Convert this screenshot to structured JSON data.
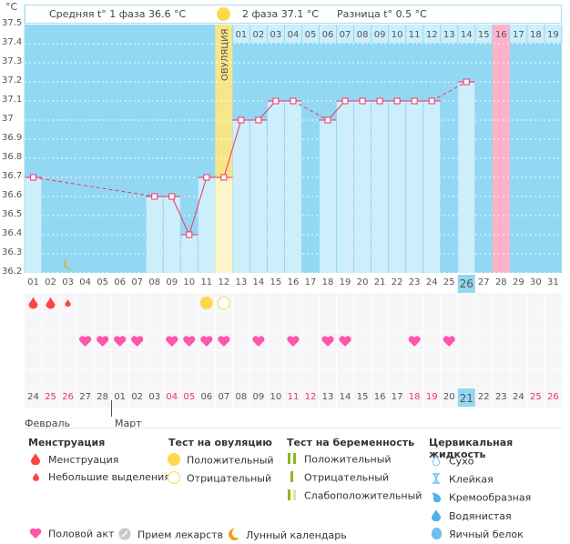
{
  "header": {
    "phase1_label": "Средняя t° 1 фаза 36.6 °C",
    "phase2_label": "2 фаза 37.1 °C",
    "diff_label": "Разница t° 0.5 °C",
    "ovulation_label": "ОВУЛЯЦИЯ"
  },
  "chart_data": {
    "type": "line",
    "title": "",
    "ylabel": "°C",
    "ylim": [
      36.2,
      37.5
    ],
    "yticks": [
      "37.5",
      "37.4",
      "37.3",
      "37.2",
      "37.1",
      "37",
      "36.9",
      "36.8",
      "36.7",
      "36.6",
      "36.5",
      "36.4",
      "36.3",
      "36.2"
    ],
    "cycle_days": [
      "01",
      "02",
      "03",
      "04",
      "05",
      "06",
      "07",
      "08",
      "09",
      "10",
      "11",
      "12",
      "13",
      "14",
      "15",
      "16",
      "17",
      "18",
      "19",
      "20",
      "21",
      "22",
      "23",
      "24",
      "25",
      "26",
      "27",
      "28",
      "29",
      "30",
      "31"
    ],
    "post_ovulation_days": [
      "01",
      "02",
      "03",
      "04",
      "05",
      "06",
      "07",
      "08",
      "09",
      "10",
      "11",
      "12",
      "13",
      "14",
      "15",
      "16",
      "17",
      "18",
      "19"
    ],
    "temperatures": [
      36.7,
      null,
      null,
      null,
      null,
      null,
      null,
      36.6,
      36.6,
      36.4,
      36.7,
      36.7,
      37.0,
      37.0,
      37.1,
      37.1,
      null,
      37.0,
      37.1,
      37.1,
      37.1,
      37.1,
      37.1,
      37.1,
      null,
      37.2,
      null,
      null,
      null,
      null,
      null
    ],
    "ovulation_day_index": 11,
    "today_day_index": 25,
    "expected_period_day_index": 27,
    "moon_day_index": 2
  },
  "markers": {
    "menstruation": [
      {
        "day": "01",
        "size": "large"
      },
      {
        "day": "02",
        "size": "large"
      },
      {
        "day": "03",
        "size": "small"
      }
    ],
    "ovulation_test": [
      {
        "day": "11",
        "result": "positive"
      },
      {
        "day": "12",
        "result": "negative"
      }
    ],
    "intercourse_days": [
      "04",
      "05",
      "06",
      "07",
      "09",
      "10",
      "11",
      "12",
      "14",
      "16",
      "18",
      "19",
      "23",
      "25"
    ]
  },
  "calendar": {
    "dates": [
      "24",
      "25",
      "26",
      "27",
      "28",
      "01",
      "02",
      "03",
      "04",
      "05",
      "06",
      "07",
      "08",
      "09",
      "10",
      "11",
      "12",
      "13",
      "14",
      "15",
      "16",
      "17",
      "18",
      "19",
      "20",
      "21",
      "22",
      "23",
      "24",
      "25",
      "26"
    ],
    "weekend_indices": [
      1,
      2,
      8,
      9,
      15,
      16,
      22,
      23,
      29,
      30
    ],
    "today_index": 25,
    "month1": "Февраль",
    "month2": "Март"
  },
  "legend": {
    "menstruation": {
      "title": "Менструация",
      "items": [
        "Менструация",
        "Небольшие выделения"
      ]
    },
    "ovulation_test": {
      "title": "Тест на овуляцию",
      "items": [
        "Положительный",
        "Отрицательный"
      ]
    },
    "pregnancy_test": {
      "title": "Тест на беременность",
      "items": [
        "Положительный",
        "Отрицательный",
        "Слабоположительный"
      ]
    },
    "cervical_fluid": {
      "title": "Цервикальная жидкость",
      "items": [
        "Сухо",
        "Клейкая",
        "Кремообразная",
        "Водянистая",
        "Яичный белок"
      ]
    },
    "other": [
      "Половой акт",
      "Прием лекарств",
      "Лунный календарь"
    ]
  },
  "colors": {
    "chart_bg": "#93d8f2",
    "bar": "#cdeefb",
    "ovulation": "#f7e58a",
    "period": "#ffb3c8",
    "line": "#ee3366",
    "heart": "#ff55aa",
    "drop": "#ff4444",
    "weekend": "#ee3366"
  }
}
